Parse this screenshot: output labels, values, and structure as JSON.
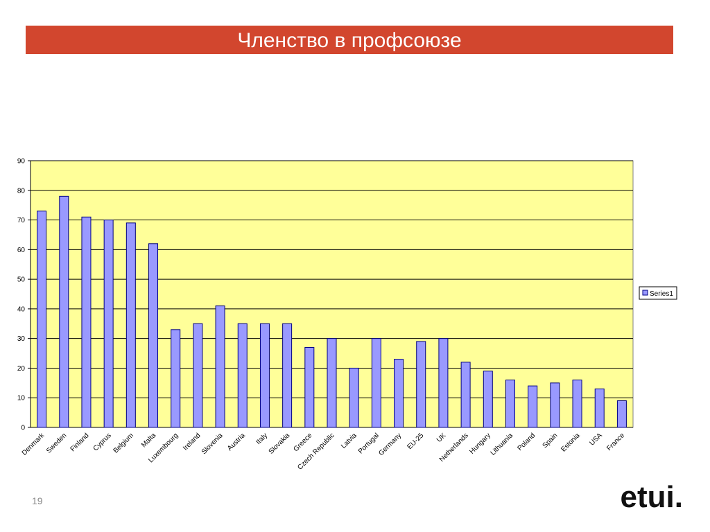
{
  "chart_data": {
    "type": "bar",
    "title": "Членство в профсоюзе",
    "categories": [
      "Denmark",
      "Sweden",
      "Finland",
      "Cyprus",
      "Belgium",
      "Malta",
      "Luxembourg",
      "Ireland",
      "Slovenia",
      "Austria",
      "Italy",
      "Slovakia",
      "Greece",
      "Czech Republic",
      "Latvia",
      "Portugal",
      "Germany",
      "EU-25",
      "UK",
      "Netherlands",
      "Hungary",
      "Lithuania",
      "Poland",
      "Spain",
      "Estonia",
      "USA",
      "France"
    ],
    "series": [
      {
        "name": "Series1",
        "color": "#9999ff",
        "values": [
          73,
          78,
          71,
          70,
          69,
          62,
          33,
          35,
          41,
          35,
          35,
          35,
          27,
          30,
          20,
          30,
          23,
          29,
          30,
          22,
          19,
          16,
          14,
          15,
          16,
          13,
          9
        ]
      }
    ],
    "ylim": [
      0,
      90
    ],
    "yticks": [
      0,
      10,
      20,
      30,
      40,
      50,
      60,
      70,
      80,
      90
    ],
    "grid": true,
    "legend": "right"
  },
  "slide": {
    "page_number": "19",
    "logo": "etui."
  }
}
